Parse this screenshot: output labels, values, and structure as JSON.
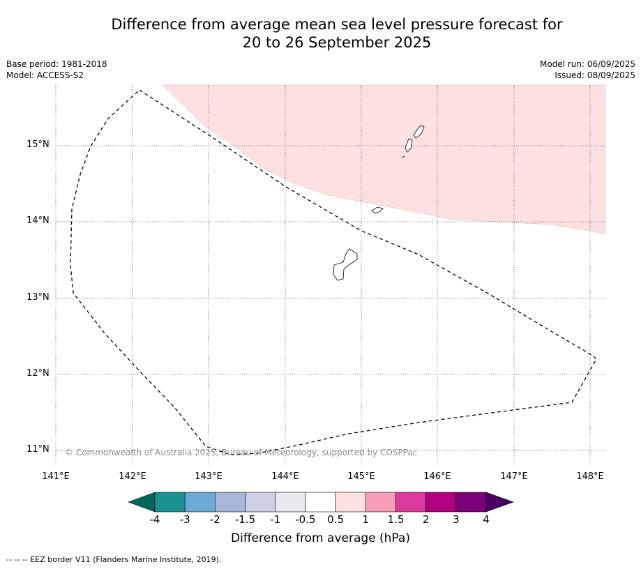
{
  "title_line1": "Difference from average mean sea level pressure forecast for",
  "title_line2": "20 to 26 September 2025",
  "base_period": "Base period: 1981-2018",
  "model": "Model: ACCESS-S2",
  "model_run": "Model run: 06/09/2025",
  "issued": "Issued: 08/09/2025",
  "lat_labels": [
    "15°N",
    "14°N",
    "13°N",
    "12°N",
    "11°N"
  ],
  "lon_labels": [
    "141°E",
    "142°E",
    "143°E",
    "144°E",
    "145°E",
    "146°E",
    "147°E",
    "148°E"
  ],
  "copyright": "© Commonwealth of Australia 2025, Bureau of Meteorology, supported by COSPPac",
  "colorbar": {
    "labels": [
      "-4",
      "-3",
      "-2",
      "-1.5",
      "-1",
      "-0.5",
      "0.5",
      "1",
      "1.5",
      "2",
      "3",
      "4"
    ],
    "colors": [
      "#1a9193",
      "#6aaad4",
      "#a6b9da",
      "#cfd0e8",
      "#e9e8ec",
      "#ffffff",
      "#fde0e0",
      "#f79eb8",
      "#dc3a9e",
      "#ae0280",
      "#7a0177"
    ],
    "extend_low_color": "#00695c",
    "extend_high_color": "#4a0066",
    "title": "Difference from average (hPa)"
  },
  "map": {
    "region": {
      "lon_min": 141,
      "lon_max": 148.2,
      "lat_min": 10.8,
      "lat_max": 15.8
    },
    "anomaly_fill_color": "#fde0e0",
    "anomaly_category": "0.5 to 1"
  },
  "footer": "--  --  -- EEZ border V11 (Flanders Marine Institute, 2019)."
}
